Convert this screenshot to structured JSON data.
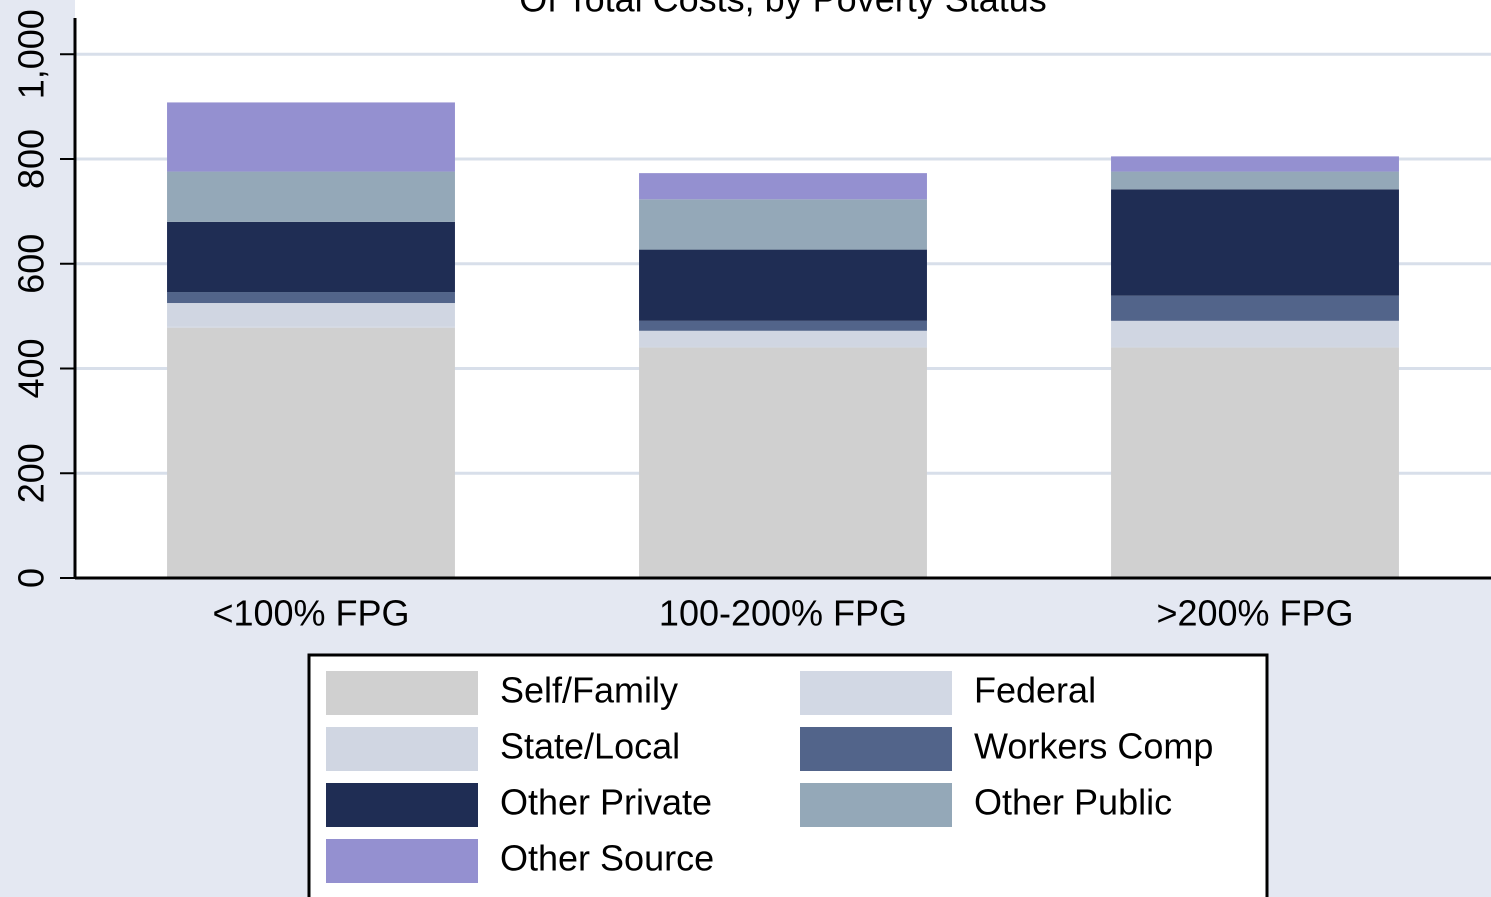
{
  "chart_data": {
    "type": "stacked_bar",
    "title": "Of Total Costs, by Poverty Status",
    "categories": [
      "<100% FPG",
      "100-200% FPG",
      ">200% FPG"
    ],
    "series": [
      {
        "name": "Self/Family",
        "color": "#d0d0d0",
        "values": [
          478,
          440,
          440
        ]
      },
      {
        "name": "Federal",
        "color": "#d2d8e4",
        "values": [
          2,
          2,
          2
        ]
      },
      {
        "name": "State/Local",
        "color": "#d0d6e2",
        "values": [
          45,
          30,
          49
        ]
      },
      {
        "name": "Workers Comp",
        "color": "#52648a",
        "values": [
          21,
          19,
          48
        ]
      },
      {
        "name": "Other Private",
        "color": "#1f2d54",
        "values": [
          134,
          136,
          203
        ]
      },
      {
        "name": "Other Public",
        "color": "#94a8b8",
        "values": [
          96,
          96,
          34
        ]
      },
      {
        "name": "Other Source",
        "color": "#9490d0",
        "values": [
          132,
          50,
          29
        ]
      }
    ],
    "ylim": [
      0,
      1010
    ],
    "yticks": [
      0,
      200,
      400,
      600,
      800,
      {
        "value": 1000,
        "label": "1,000"
      }
    ],
    "grid": true
  }
}
